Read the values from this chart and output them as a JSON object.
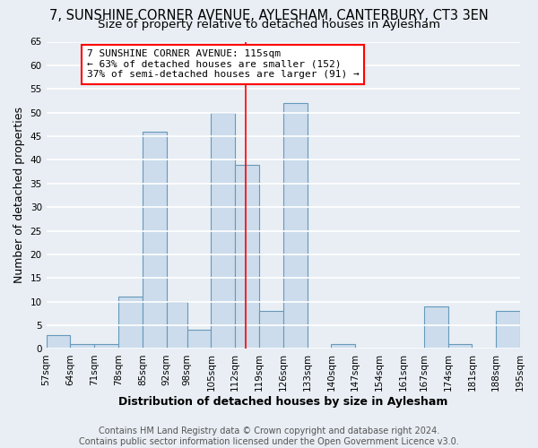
{
  "title": "7, SUNSHINE CORNER AVENUE, AYLESHAM, CANTERBURY, CT3 3EN",
  "subtitle": "Size of property relative to detached houses in Aylesham",
  "xlabel": "Distribution of detached houses by size in Aylesham",
  "ylabel": "Number of detached properties",
  "bin_labels": [
    "57sqm",
    "64sqm",
    "71sqm",
    "78sqm",
    "85sqm",
    "92sqm",
    "98sqm",
    "105sqm",
    "112sqm",
    "119sqm",
    "126sqm",
    "133sqm",
    "140sqm",
    "147sqm",
    "154sqm",
    "161sqm",
    "167sqm",
    "174sqm",
    "181sqm",
    "188sqm",
    "195sqm"
  ],
  "bin_edges": [
    57,
    64,
    71,
    78,
    85,
    92,
    98,
    105,
    112,
    119,
    126,
    133,
    140,
    147,
    154,
    161,
    167,
    174,
    181,
    188,
    195
  ],
  "bar_heights": [
    3,
    1,
    1,
    11,
    46,
    10,
    4,
    50,
    39,
    8,
    52,
    0,
    1,
    0,
    0,
    0,
    9,
    1,
    0,
    8
  ],
  "bar_color": "#ccdcec",
  "bar_edge_color": "#6699bb",
  "property_line_x": 115,
  "property_line_color": "red",
  "annotation_line1": "7 SUNSHINE CORNER AVENUE: 115sqm",
  "annotation_line2": "← 63% of detached houses are smaller (152)",
  "annotation_line3": "37% of semi-detached houses are larger (91) →",
  "annotation_box_edge_color": "red",
  "annotation_box_face_color": "white",
  "ylim": [
    0,
    65
  ],
  "yticks": [
    0,
    5,
    10,
    15,
    20,
    25,
    30,
    35,
    40,
    45,
    50,
    55,
    60,
    65
  ],
  "footer_line1": "Contains HM Land Registry data © Crown copyright and database right 2024.",
  "footer_line2": "Contains public sector information licensed under the Open Government Licence v3.0.",
  "background_color": "#e8eef4",
  "grid_color": "white",
  "title_fontsize": 10.5,
  "subtitle_fontsize": 9.5,
  "axis_label_fontsize": 9,
  "tick_fontsize": 7.5,
  "annotation_fontsize": 8,
  "footer_fontsize": 7
}
